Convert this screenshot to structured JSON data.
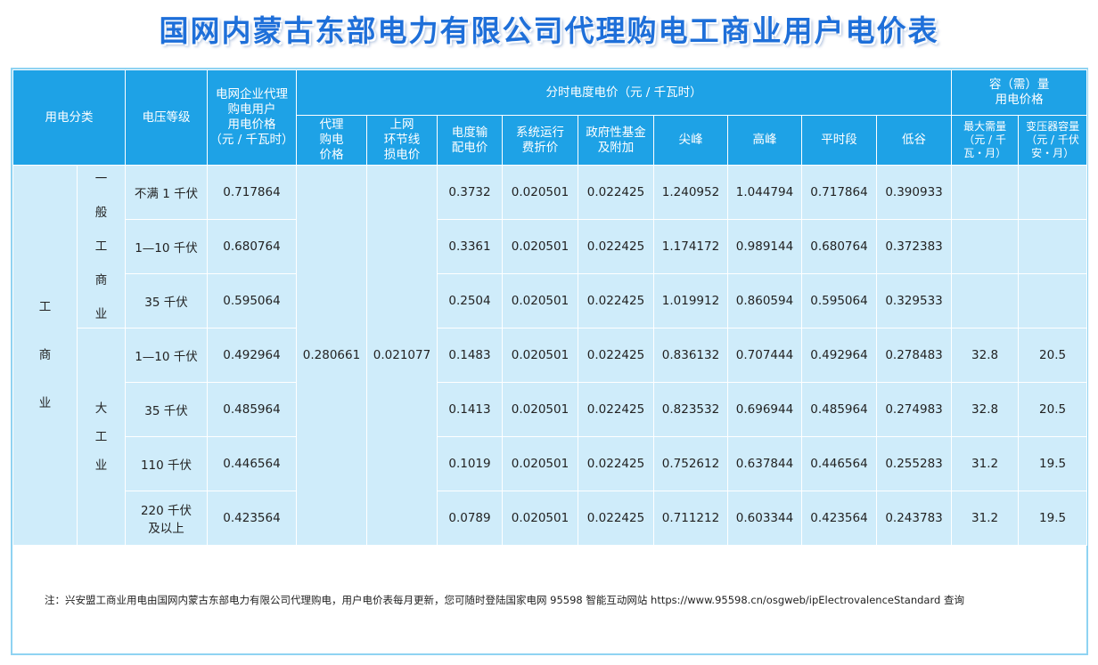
{
  "title": "国网内蒙古东部电力有限公司代理购电工商业用户电价表",
  "headers": {
    "category": "用电分类",
    "voltage": "电压等级",
    "agent_price": [
      "电网企业代理",
      "购电用户",
      "用电价格",
      "（元 / 千瓦时）"
    ],
    "tou_group": "分时电度电价（元 / 千瓦时）",
    "capacity_group": [
      "容（需）量",
      "用电价格"
    ],
    "agent_purchase": [
      "代理",
      "购电",
      "价格"
    ],
    "network_loss": [
      "上网",
      "环节线",
      "损电价"
    ],
    "transmission": [
      "电度输",
      "配电价"
    ],
    "system_cost": [
      "系统运行",
      "费折价"
    ],
    "government_fund": [
      "政府性基金",
      "及附加"
    ],
    "sharp_peak": "尖峰",
    "peak": "高峰",
    "flat": "平时段",
    "valley": "低谷",
    "max_demand": [
      "最大需量",
      "（元 / 千",
      "瓦・月）"
    ],
    "transformer_capacity": [
      "变压器容量",
      "（元 / 千伏",
      "安・月）"
    ]
  },
  "category_main": [
    "工",
    "商",
    "业"
  ],
  "sub_general": [
    "一",
    "般",
    "工",
    "商",
    "业"
  ],
  "sub_large": [
    "大",
    "工",
    "业"
  ],
  "shared": {
    "agent_purchase_price": "0.280661",
    "network_loss_price": "0.021077"
  },
  "rows": [
    {
      "voltage": "不满 1 千伏",
      "agent": "0.717864",
      "trans": "0.3732",
      "sys": "0.020501",
      "gov": "0.022425",
      "sharp": "1.240952",
      "peak": "1.044794",
      "flat": "0.717864",
      "valley": "0.390933",
      "demand": "",
      "capacity": ""
    },
    {
      "voltage": "1—10 千伏",
      "agent": "0.680764",
      "trans": "0.3361",
      "sys": "0.020501",
      "gov": "0.022425",
      "sharp": "1.174172",
      "peak": "0.989144",
      "flat": "0.680764",
      "valley": "0.372383",
      "demand": "",
      "capacity": ""
    },
    {
      "voltage": "35 千伏",
      "agent": "0.595064",
      "trans": "0.2504",
      "sys": "0.020501",
      "gov": "0.022425",
      "sharp": "1.019912",
      "peak": "0.860594",
      "flat": "0.595064",
      "valley": "0.329533",
      "demand": "",
      "capacity": ""
    },
    {
      "voltage": "1—10 千伏",
      "agent": "0.492964",
      "trans": "0.1483",
      "sys": "0.020501",
      "gov": "0.022425",
      "sharp": "0.836132",
      "peak": "0.707444",
      "flat": "0.492964",
      "valley": "0.278483",
      "demand": "32.8",
      "capacity": "20.5"
    },
    {
      "voltage": "35 千伏",
      "agent": "0.485964",
      "trans": "0.1413",
      "sys": "0.020501",
      "gov": "0.022425",
      "sharp": "0.823532",
      "peak": "0.696944",
      "flat": "0.485964",
      "valley": "0.274983",
      "demand": "32.8",
      "capacity": "20.5"
    },
    {
      "voltage": "110 千伏",
      "agent": "0.446564",
      "trans": "0.1019",
      "sys": "0.020501",
      "gov": "0.022425",
      "sharp": "0.752612",
      "peak": "0.637844",
      "flat": "0.446564",
      "valley": "0.255283",
      "demand": "31.2",
      "capacity": "19.5"
    },
    {
      "voltage": [
        "220 千伏",
        "及以上"
      ],
      "agent": "0.423564",
      "trans": "0.0789",
      "sys": "0.020501",
      "gov": "0.022425",
      "sharp": "0.711212",
      "peak": "0.603344",
      "flat": "0.423564",
      "valley": "0.243783",
      "demand": "31.2",
      "capacity": "19.5"
    }
  ],
  "note": "注：兴安盟工商业用电由国网内蒙古东部电力有限公司代理购电，用户电价表每月更新，您可随时登陆国家电网 95598 智能互动网站 https://www.95598.cn/osgweb/ipElectrovalenceStandard 查询",
  "colors": {
    "header_bg": "#1ea2e6",
    "cell_bg": "#cfecfa",
    "title": "#1e6fd9",
    "border": "#8fd3f2"
  }
}
